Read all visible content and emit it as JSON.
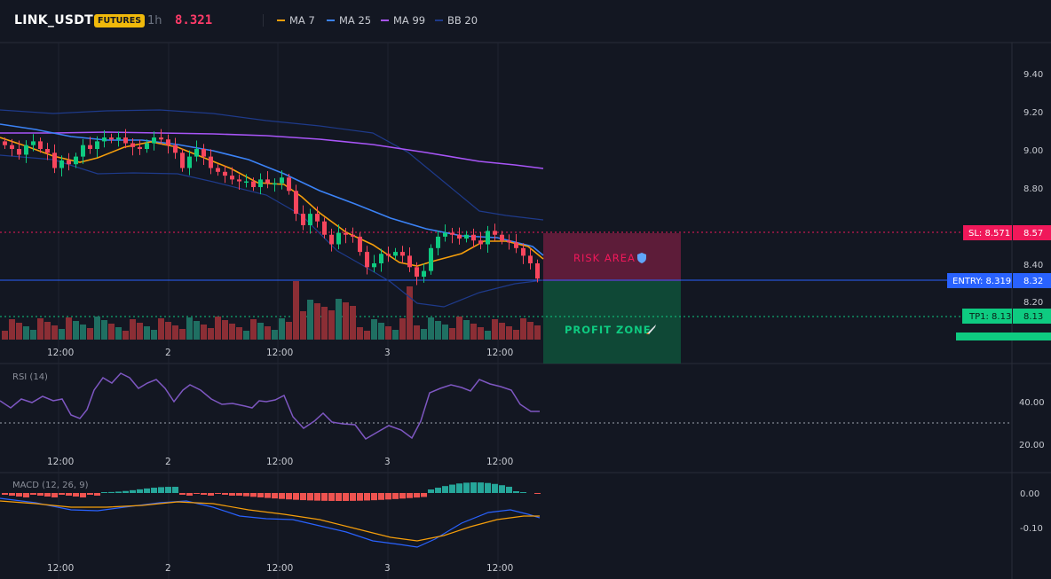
{
  "header": {
    "symbol": "LINK_USDT",
    "badge": "FUTURES",
    "timeframe": "1h",
    "last_price": "8.321",
    "indicators": [
      {
        "label": "MA 7",
        "color": "#f59e0b"
      },
      {
        "label": "MA 25",
        "color": "#3b82f6"
      },
      {
        "label": "MA 99",
        "color": "#a855f7"
      },
      {
        "label": "BB 20",
        "color": "#1e3a8a"
      }
    ]
  },
  "price_axis": {
    "ticks": [
      "9.40",
      "9.20",
      "9.00",
      "8.80",
      "8.40",
      "8.20"
    ]
  },
  "levels": {
    "sl": {
      "label": "SL: 8.571",
      "value": "8.57",
      "color": "#f0185a"
    },
    "entry": {
      "label": "ENTRY: 8.319",
      "value": "8.32",
      "color": "#2962ff"
    },
    "tp1": {
      "label": "TP1: 8.13",
      "value": "8.13",
      "color": "#0ecb81"
    }
  },
  "zones": {
    "risk": {
      "label": "RISK AREA",
      "icon": "shield-icon"
    },
    "profit": {
      "label": "PROFIT ZONE",
      "icon": "rocket-icon"
    }
  },
  "time_axis": {
    "labels": [
      "12:00",
      "2",
      "12:00",
      "3",
      "12:00"
    ]
  },
  "rsi": {
    "title": "RSI (14)",
    "ticks": [
      "40.00",
      "20.00"
    ]
  },
  "macd": {
    "title": "MACD (12, 26, 9)",
    "ticks": [
      "0.00",
      "-0.10"
    ]
  },
  "colors": {
    "up": "#26a69a",
    "down": "#ef5350",
    "candle_up": "#0ecb81",
    "candle_down": "#f6465d",
    "rsi_line": "#7e57c2"
  }
}
